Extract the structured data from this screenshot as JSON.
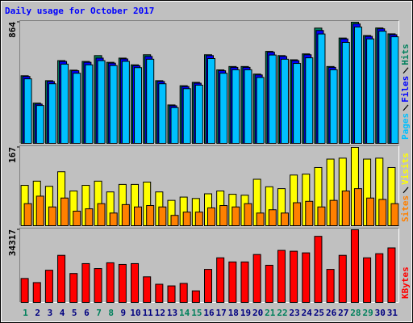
{
  "chart_data": [
    {
      "type": "bar",
      "title": "Daily usage for October 2017",
      "ylim": [
        0,
        864
      ],
      "yticks": [
        864
      ],
      "series": [
        {
          "name": "Pages",
          "color": "#00c0ff",
          "values": [
            460,
            270,
            425,
            565,
            500,
            560,
            590,
            555,
            585,
            540,
            600,
            425,
            255,
            390,
            415,
            605,
            500,
            525,
            525,
            470,
            630,
            600,
            570,
            610,
            780,
            525,
            720,
            830,
            745,
            800,
            760
          ]
        },
        {
          "name": "Files",
          "color": "#0000ff",
          "values": [
            477,
            280,
            441,
            584,
            518,
            578,
            608,
            572,
            602,
            554,
            620,
            441,
            268,
            405,
            429,
            626,
            518,
            542,
            542,
            488,
            650,
            620,
            590,
            632,
            805,
            542,
            745,
            852,
            763,
            817,
            775
          ]
        },
        {
          "name": "Hits",
          "color": "#00805c",
          "values": [
            482,
            287,
            447,
            590,
            522,
            584,
            626,
            578,
            608,
            560,
            632,
            447,
            274,
            411,
            435,
            632,
            524,
            548,
            548,
            494,
            656,
            626,
            596,
            638,
            822,
            548,
            751,
            864,
            769,
            823,
            781
          ]
        }
      ]
    },
    {
      "type": "bar",
      "ylim": [
        0,
        167
      ],
      "yticks": [
        167
      ],
      "series": [
        {
          "name": "Sites",
          "color": "#ff8000",
          "values": [
            47,
            63,
            40,
            59,
            31,
            36,
            47,
            27,
            45,
            40,
            43,
            40,
            22,
            29,
            29,
            38,
            43,
            40,
            47,
            27,
            34,
            27,
            49,
            52,
            40,
            54,
            74,
            79,
            59,
            56,
            47
          ]
        },
        {
          "name": "Visits",
          "color": "#ffff00",
          "values": [
            86,
            95,
            84,
            115,
            74,
            86,
            95,
            72,
            88,
            88,
            93,
            72,
            54,
            61,
            58,
            68,
            74,
            67,
            65,
            99,
            83,
            79,
            108,
            110,
            124,
            142,
            144,
            167,
            142,
            144,
            124
          ]
        }
      ]
    },
    {
      "type": "bar",
      "ylim": [
        0,
        34317
      ],
      "yticks": [
        34317
      ],
      "categories": [
        "1",
        "2",
        "3",
        "4",
        "5",
        "6",
        "7",
        "8",
        "9",
        "10",
        "11",
        "12",
        "13",
        "14",
        "15",
        "16",
        "17",
        "18",
        "19",
        "20",
        "21",
        "22",
        "23",
        "24",
        "25",
        "26",
        "27",
        "28",
        "29",
        "30",
        "31"
      ],
      "category_colors": [
        "#00805c",
        "#000080",
        "#000080",
        "#000080",
        "#000080",
        "#000080",
        "#00805c",
        "#00805c",
        "#000080",
        "#000080",
        "#000080",
        "#000080",
        "#000080",
        "#00805c",
        "#00805c",
        "#000080",
        "#000080",
        "#000080",
        "#000080",
        "#000080",
        "#00805c",
        "#00805c",
        "#000080",
        "#000080",
        "#000080",
        "#000080",
        "#000080",
        "#00805c",
        "#00805c",
        "#000080",
        "#000080"
      ],
      "series": [
        {
          "name": "KBytes",
          "color": "#ff0000",
          "values": [
            11300,
            9360,
            15200,
            22230,
            13650,
            18330,
            15990,
            18720,
            17940,
            18330,
            12090,
            8580,
            7800,
            8970,
            5460,
            15600,
            21060,
            19110,
            19110,
            22620,
            17550,
            24570,
            24180,
            23400,
            31200,
            15600,
            22230,
            34317,
            21060,
            23010,
            25740
          ]
        }
      ]
    }
  ]
}
